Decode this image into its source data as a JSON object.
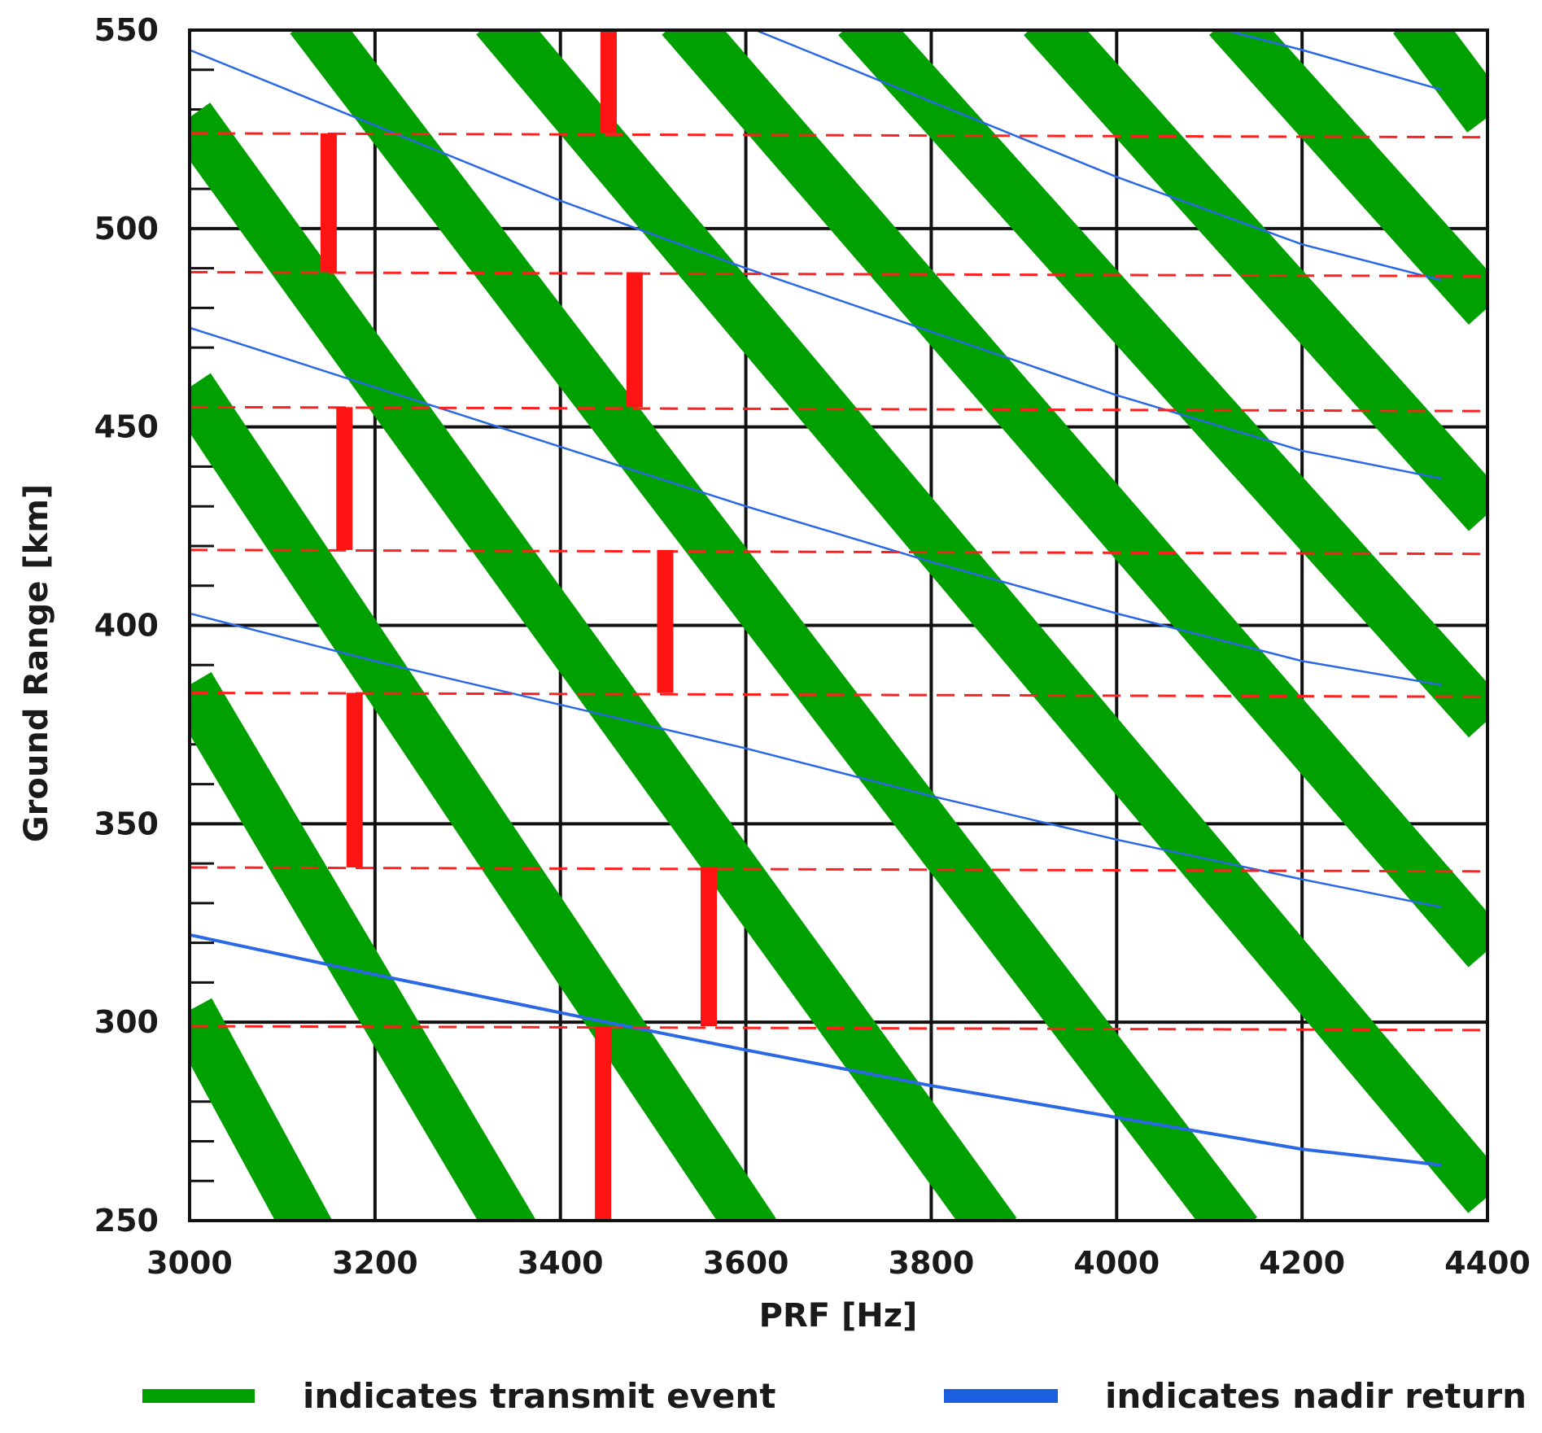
{
  "chart_data": {
    "type": "line",
    "title": "",
    "xlabel": "PRF [Hz]",
    "ylabel": "Ground Range [km]",
    "xlim": [
      3000,
      4400
    ],
    "ylim": [
      250,
      550
    ],
    "xticks": [
      "3000",
      "3200",
      "3400",
      "3600",
      "3800",
      "4000",
      "4200",
      "4400"
    ],
    "yticks": [
      "250",
      "300",
      "350",
      "400",
      "450",
      "500",
      "550"
    ],
    "grid": true,
    "legend_position": "bottom",
    "legend": [
      {
        "label": "indicates transmit event",
        "color": "#00a000"
      },
      {
        "label": "indicates nadir return",
        "color": "#1a5fe0"
      }
    ],
    "transmit_event_bands": [
      {
        "x": [
          3000,
          3130
        ],
        "y": [
          303,
          247
        ]
      },
      {
        "x": [
          3000,
          3350
        ],
        "y": [
          385,
          247
        ]
      },
      {
        "x": [
          3000,
          3610
        ],
        "y": [
          460,
          247
        ]
      },
      {
        "x": [
          3000,
          3870
        ],
        "y": [
          528,
          247
        ]
      },
      {
        "x": [
          3130,
          4130
        ],
        "y": [
          553,
          247
        ]
      },
      {
        "x": [
          3330,
          4400
        ],
        "y": [
          553,
          256
        ]
      },
      {
        "x": [
          3530,
          4400
        ],
        "y": [
          553,
          318
        ]
      },
      {
        "x": [
          3720,
          4400
        ],
        "y": [
          553,
          376
        ]
      },
      {
        "x": [
          3920,
          4400
        ],
        "y": [
          553,
          428
        ]
      },
      {
        "x": [
          4120,
          4400
        ],
        "y": [
          553,
          480
        ]
      },
      {
        "x": [
          4320,
          4400
        ],
        "y": [
          553,
          528
        ]
      }
    ],
    "nadir_return_curves": [
      {
        "x": [
          3000,
          3200,
          3450,
          3600,
          3800,
          4000,
          4200,
          4350
        ],
        "y": [
          322,
          312,
          300,
          293,
          284,
          276,
          268,
          264
        ]
      },
      {
        "x": [
          3000,
          3200,
          3400,
          3600,
          3800,
          4000,
          4200,
          4350
        ],
        "y": [
          403,
          391,
          380,
          369,
          357,
          346,
          336,
          329
        ]
      },
      {
        "x": [
          3000,
          3200,
          3400,
          3600,
          3800,
          4000,
          4200,
          4350
        ],
        "y": [
          475,
          460,
          445,
          430,
          416,
          403,
          391,
          385
        ]
      },
      {
        "x": [
          3000,
          3200,
          3400,
          3600,
          3800,
          4000,
          4200,
          4350
        ],
        "y": [
          545,
          526,
          507,
          490,
          474,
          458,
          444,
          437
        ]
      },
      {
        "x": [
          3600,
          3800,
          4000,
          4200,
          4350
        ],
        "y": [
          551,
          532,
          513,
          496,
          487
        ]
      },
      {
        "x": [
          4100,
          4200,
          4350
        ],
        "y": [
          551,
          545,
          535
        ]
      }
    ],
    "dashed_reference_lines": [
      {
        "y": [
          299,
          298
        ]
      },
      {
        "y": [
          339,
          338
        ]
      },
      {
        "y": [
          383,
          382
        ]
      },
      {
        "y": [
          419,
          418
        ]
      },
      {
        "y": [
          455,
          454
        ]
      },
      {
        "y": [
          489,
          488
        ]
      },
      {
        "y": [
          524,
          523
        ]
      }
    ],
    "red_bars": [
      {
        "x": 3446,
        "y": [
          248,
          299
        ]
      },
      {
        "x": 3452,
        "y": [
          524,
          550
        ]
      },
      {
        "x": 3150,
        "y": [
          489,
          524
        ]
      },
      {
        "x": 3480,
        "y": [
          455,
          489
        ]
      },
      {
        "x": 3167,
        "y": [
          419,
          455
        ]
      },
      {
        "x": 3513,
        "y": [
          383,
          419
        ]
      },
      {
        "x": 3178,
        "y": [
          339,
          383
        ]
      },
      {
        "x": 3560,
        "y": [
          299,
          339
        ]
      }
    ]
  }
}
